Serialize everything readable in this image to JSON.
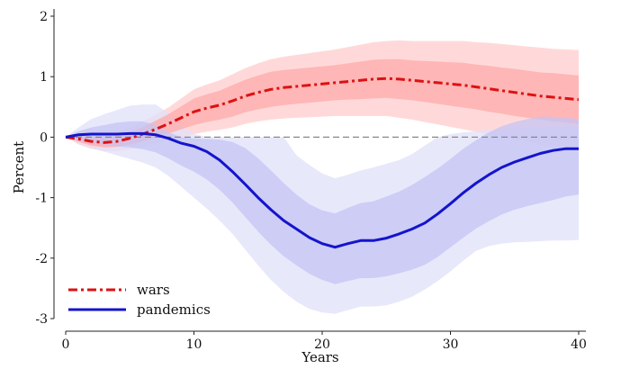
{
  "chart_data": {
    "type": "line",
    "title": "",
    "xlabel": "Years",
    "ylabel": "Percent",
    "xlim": [
      0,
      40
    ],
    "ylim": [
      -3,
      2
    ],
    "xticks": [
      0,
      10,
      20,
      30,
      40
    ],
    "yticks": [
      -3,
      -2,
      -1,
      0,
      1,
      2
    ],
    "legend_position": "bottom-left",
    "zero_line": {
      "y": 0,
      "style": "dashed",
      "color": "#888888"
    },
    "series": [
      {
        "name": "wars",
        "style": "dash-dot",
        "color": "#dd1111",
        "band_outer_color": "#ffcccc",
        "band_inner_color": "#ffaaaa",
        "x": [
          0,
          1,
          2,
          3,
          4,
          5,
          6,
          7,
          8,
          9,
          10,
          11,
          12,
          13,
          14,
          15,
          16,
          17,
          18,
          19,
          20,
          21,
          22,
          23,
          24,
          25,
          26,
          27,
          28,
          29,
          30,
          31,
          32,
          33,
          34,
          35,
          36,
          37,
          38,
          39,
          40
        ],
        "values": [
          0,
          -0.03,
          -0.07,
          -0.09,
          -0.07,
          -0.02,
          0.05,
          0.13,
          0.22,
          0.32,
          0.42,
          0.48,
          0.53,
          0.6,
          0.68,
          0.74,
          0.79,
          0.82,
          0.84,
          0.86,
          0.88,
          0.9,
          0.92,
          0.94,
          0.96,
          0.97,
          0.96,
          0.94,
          0.92,
          0.9,
          0.88,
          0.86,
          0.83,
          0.8,
          0.77,
          0.74,
          0.71,
          0.68,
          0.66,
          0.64,
          0.62
        ],
        "band_inner_lower": [
          0,
          -0.08,
          -0.14,
          -0.17,
          -0.16,
          -0.12,
          -0.07,
          -0.01,
          0.06,
          0.13,
          0.2,
          0.25,
          0.29,
          0.34,
          0.41,
          0.46,
          0.5,
          0.53,
          0.55,
          0.57,
          0.59,
          0.61,
          0.62,
          0.63,
          0.64,
          0.65,
          0.63,
          0.61,
          0.58,
          0.55,
          0.52,
          0.49,
          0.46,
          0.42,
          0.39,
          0.35,
          0.32,
          0.29,
          0.26,
          0.24,
          0.22
        ],
        "band_inner_upper": [
          0,
          0.02,
          0,
          -0.01,
          0.02,
          0.08,
          0.17,
          0.27,
          0.38,
          0.51,
          0.64,
          0.71,
          0.77,
          0.86,
          0.95,
          1.02,
          1.08,
          1.11,
          1.13,
          1.15,
          1.17,
          1.19,
          1.22,
          1.25,
          1.28,
          1.29,
          1.29,
          1.27,
          1.26,
          1.25,
          1.24,
          1.23,
          1.2,
          1.18,
          1.15,
          1.13,
          1.1,
          1.07,
          1.06,
          1.04,
          1.02
        ],
        "band_outer_lower": [
          0,
          -0.12,
          -0.19,
          -0.23,
          -0.23,
          -0.2,
          -0.16,
          -0.11,
          -0.05,
          0,
          0.05,
          0.09,
          0.12,
          0.16,
          0.22,
          0.26,
          0.29,
          0.31,
          0.32,
          0.33,
          0.34,
          0.35,
          0.35,
          0.35,
          0.35,
          0.35,
          0.32,
          0.29,
          0.25,
          0.21,
          0.17,
          0.13,
          0.09,
          0.04,
          0,
          -0.04,
          -0.08,
          -0.12,
          -0.16,
          -0.19,
          -0.22
        ],
        "band_outer_upper": [
          0,
          0.06,
          0.05,
          0.05,
          0.09,
          0.16,
          0.26,
          0.37,
          0.49,
          0.64,
          0.79,
          0.87,
          0.94,
          1.04,
          1.14,
          1.22,
          1.29,
          1.33,
          1.36,
          1.39,
          1.42,
          1.45,
          1.49,
          1.53,
          1.57,
          1.59,
          1.6,
          1.59,
          1.59,
          1.59,
          1.59,
          1.59,
          1.57,
          1.56,
          1.54,
          1.52,
          1.5,
          1.48,
          1.46,
          1.45,
          1.44
        ]
      },
      {
        "name": "pandemics",
        "style": "solid",
        "color": "#1414cc",
        "band_outer_color": "#e0e0fa",
        "band_inner_color": "#c4c4f4",
        "x": [
          0,
          1,
          2,
          3,
          4,
          5,
          6,
          7,
          8,
          9,
          10,
          11,
          12,
          13,
          14,
          15,
          16,
          17,
          18,
          19,
          20,
          21,
          22,
          23,
          24,
          25,
          26,
          27,
          28,
          29,
          30,
          31,
          32,
          33,
          34,
          35,
          36,
          37,
          38,
          39,
          40
        ],
        "values": [
          0,
          0.04,
          0.05,
          0.05,
          0.05,
          0.06,
          0.06,
          0.04,
          -0.02,
          -0.1,
          -0.15,
          -0.24,
          -0.38,
          -0.57,
          -0.78,
          -1,
          -1.2,
          -1.38,
          -1.52,
          -1.66,
          -1.76,
          -1.82,
          -1.76,
          -1.71,
          -1.71,
          -1.67,
          -1.6,
          -1.52,
          -1.42,
          -1.27,
          -1.1,
          -0.92,
          -0.76,
          -0.62,
          -0.5,
          -0.41,
          -0.34,
          -0.27,
          -0.22,
          -0.19,
          -0.19
        ],
        "band_inner_lower": [
          0,
          -0.05,
          -0.08,
          -0.12,
          -0.15,
          -0.17,
          -0.2,
          -0.25,
          -0.35,
          -0.47,
          -0.57,
          -0.7,
          -0.87,
          -1.08,
          -1.32,
          -1.56,
          -1.78,
          -1.97,
          -2.12,
          -2.26,
          -2.36,
          -2.43,
          -2.38,
          -2.33,
          -2.33,
          -2.3,
          -2.25,
          -2.19,
          -2.11,
          -1.98,
          -1.82,
          -1.66,
          -1.51,
          -1.39,
          -1.28,
          -1.2,
          -1.14,
          -1.09,
          -1.04,
          -0.98,
          -0.95
        ],
        "band_inner_upper": [
          0,
          0.1,
          0.16,
          0.2,
          0.24,
          0.26,
          0.26,
          0.2,
          0.08,
          0,
          -0.02,
          -0.03,
          -0.04,
          -0.08,
          -0.18,
          -0.35,
          -0.55,
          -0.76,
          -0.95,
          -1.11,
          -1.21,
          -1.26,
          -1.17,
          -1.09,
          -1.06,
          -0.98,
          -0.9,
          -0.79,
          -0.66,
          -0.52,
          -0.36,
          -0.19,
          -0.05,
          0.08,
          0.18,
          0.25,
          0.3,
          0.34,
          0.34,
          0.32,
          0.3
        ],
        "band_outer_lower": [
          0,
          -0.1,
          -0.18,
          -0.24,
          -0.3,
          -0.36,
          -0.42,
          -0.5,
          -0.64,
          -0.82,
          -1,
          -1.18,
          -1.38,
          -1.6,
          -1.86,
          -2.12,
          -2.36,
          -2.56,
          -2.72,
          -2.84,
          -2.9,
          -2.92,
          -2.86,
          -2.8,
          -2.8,
          -2.78,
          -2.72,
          -2.64,
          -2.52,
          -2.38,
          -2.22,
          -2.04,
          -1.88,
          -1.8,
          -1.76,
          -1.74,
          -1.73,
          -1.72,
          -1.71,
          -1.71,
          -1.7
        ],
        "band_outer_upper": [
          0,
          0.16,
          0.3,
          0.38,
          0.45,
          0.52,
          0.54,
          0.54,
          0.4,
          0.2,
          0.05,
          0,
          0,
          0,
          0,
          0,
          0,
          0,
          -0.3,
          -0.46,
          -0.6,
          -0.68,
          -0.62,
          -0.55,
          -0.5,
          -0.44,
          -0.38,
          -0.28,
          -0.14,
          0,
          0.05,
          0.08,
          0.1,
          0.12,
          0.12,
          0.14,
          0.14,
          0.16,
          0.16,
          0.16,
          0.16
        ]
      }
    ]
  }
}
